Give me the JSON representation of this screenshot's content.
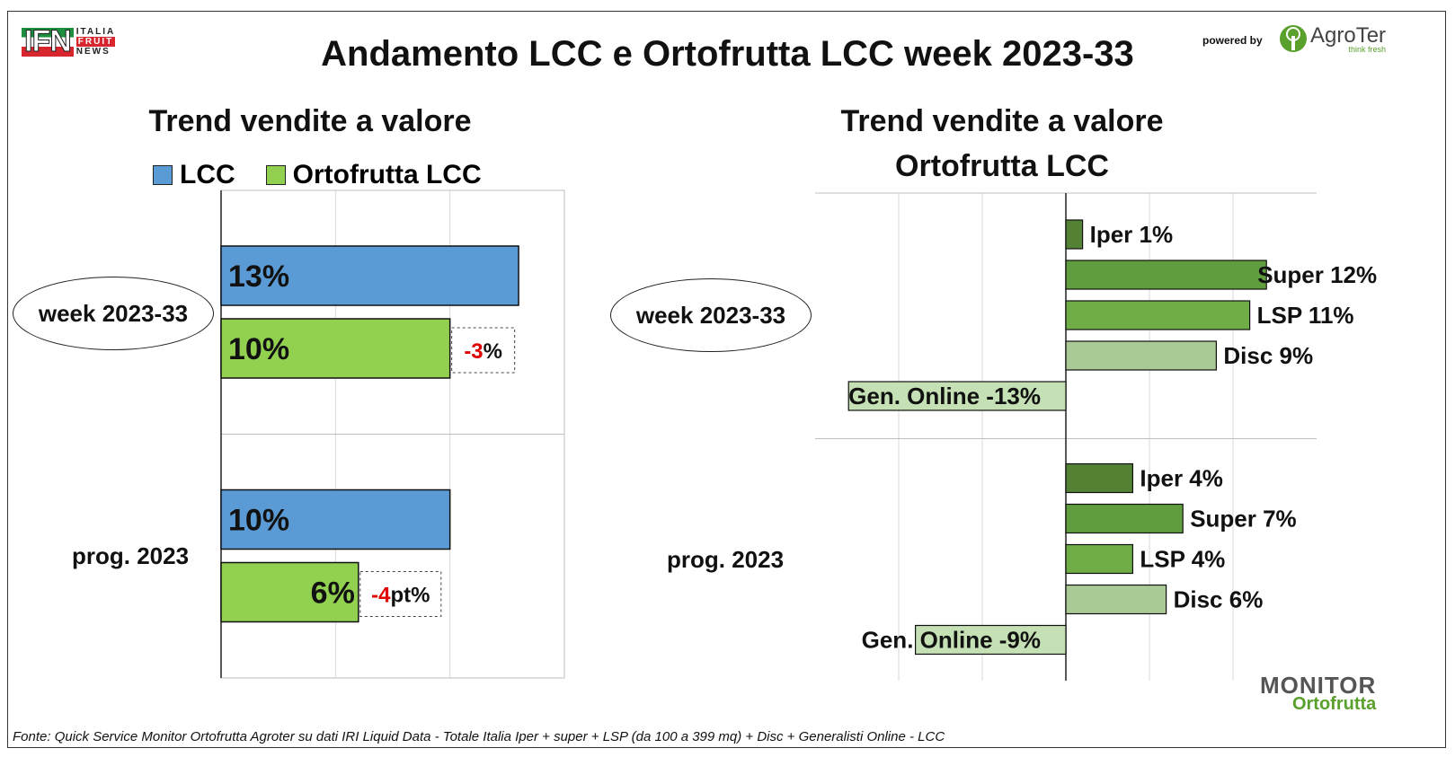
{
  "header": {
    "title": "Andamento LCC e Ortofrutta LCC week 2023-33",
    "logo_left": {
      "main": "IFN",
      "lines": [
        "ITALIA",
        "FRUIT",
        "NEWS"
      ]
    },
    "powered_by": "powered by",
    "logo_right": "AgroTer",
    "logo_right_tagline": "think fresh"
  },
  "footer": {
    "source": "Fonte: Quick Service Monitor Ortofrutta Agroter su dati IRI Liquid Data - Totale Italia Iper + super + LSP (da 100 a 399 mq) + Disc + Generalisti Online - LCC",
    "logo_line1": "MONITOR",
    "logo_line2": "Ortofrutta"
  },
  "colors": {
    "lcc": "#5b9bd5",
    "ortofrutta": "#92d050",
    "iper": "#548235",
    "super": "#5f9d3e",
    "lsp": "#70ad47",
    "disc": "#a9c995",
    "online": "#c5e0b4",
    "negative_text": "#e00000"
  },
  "chart_data": [
    {
      "type": "bar",
      "title": "Trend vendite a valore",
      "orientation": "horizontal",
      "categories": [
        "week 2023-33",
        "prog. 2023"
      ],
      "series": [
        {
          "name": "LCC",
          "values": [
            13,
            10
          ],
          "labels": [
            "13%",
            "10%"
          ]
        },
        {
          "name": "Ortofrutta LCC",
          "values": [
            10,
            6
          ],
          "labels": [
            "10%",
            "6%"
          ]
        }
      ],
      "annotations": [
        {
          "category": "week 2023-33",
          "neg": "-3",
          "suffix": "%"
        },
        {
          "category": "prog. 2023",
          "neg": "-4",
          "suffix": "pt%"
        }
      ],
      "xlim": [
        0,
        15
      ],
      "grid": true,
      "legend": "top"
    },
    {
      "type": "bar",
      "title": [
        "Trend vendite a valore",
        "Ortofrutta LCC"
      ],
      "orientation": "horizontal",
      "categories": [
        "week 2023-33",
        "prog. 2023"
      ],
      "channels": [
        "Iper",
        "Super",
        "LSP",
        "Disc",
        "Gen. Online"
      ],
      "groups": [
        {
          "category": "week 2023-33",
          "values": [
            1,
            12,
            11,
            9,
            -13
          ],
          "labels": [
            "Iper 1%",
            "Super 12%",
            "LSP 11%",
            "Disc 9%",
            "Gen. Online -13%"
          ]
        },
        {
          "category": "prog. 2023",
          "values": [
            4,
            7,
            4,
            6,
            -9
          ],
          "labels": [
            "Iper 4%",
            "Super 7%",
            "LSP 4%",
            "Disc 6%",
            "Gen. Online -9%"
          ]
        }
      ],
      "xlim": [
        -15,
        15
      ],
      "grid": true
    }
  ]
}
